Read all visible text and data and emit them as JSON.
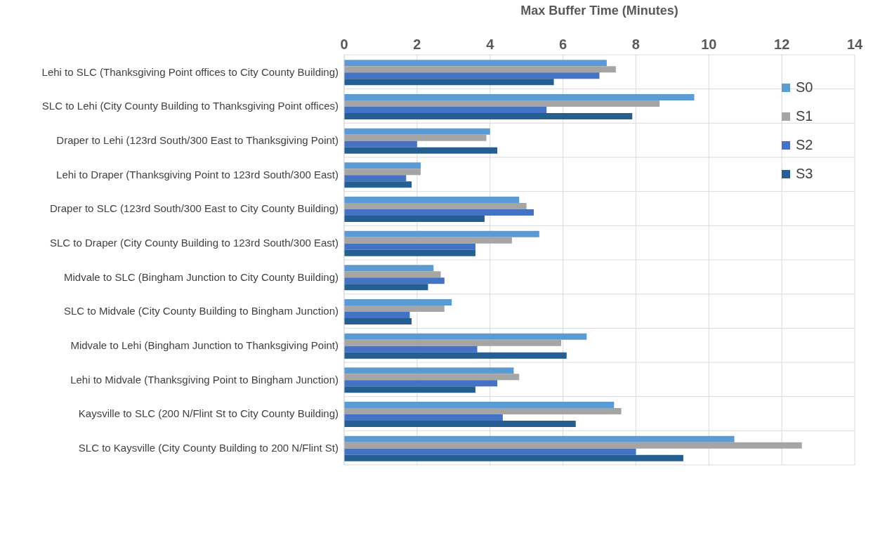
{
  "chart_data": {
    "type": "bar",
    "orientation": "horizontal",
    "xlabel": "Max Buffer Time (Minutes)",
    "categories": [
      "Lehi to SLC  (Thanksgiving Point offices to City County Building)",
      "SLC to Lehi  (City County Building to Thanksgiving Point offices)",
      "Draper to Lehi  (123rd South/300 East to Thanksgiving Point)",
      "Lehi to Draper  (Thanksgiving Point to 123rd South/300 East)",
      "Draper to SLC  (123rd South/300 East to City County Building)",
      "SLC to Draper  (City County Building to 123rd South/300 East)",
      "Midvale to SLC  (Bingham Junction to City County Building)",
      "SLC to Midvale  (City County Building to Bingham Junction)",
      "Midvale to Lehi  (Bingham Junction to Thanksgiving Point)",
      "Lehi to Midvale  (Thanksgiving Point to Bingham Junction)",
      "Kaysville to SLC  (200 N/Flint St to City County Building)",
      "SLC to Kaysville  (City County Building to 200 N/Flint St)"
    ],
    "series": [
      {
        "name": "S0",
        "color": "#5b9bd5",
        "values": [
          7.2,
          9.6,
          4.0,
          2.1,
          4.8,
          5.35,
          2.45,
          2.95,
          6.65,
          4.65,
          7.4,
          10.7
        ]
      },
      {
        "name": "S1",
        "color": "#a5a5a5",
        "values": [
          7.45,
          8.65,
          3.9,
          2.1,
          5.0,
          4.6,
          2.65,
          2.75,
          5.95,
          4.8,
          7.6,
          12.55
        ]
      },
      {
        "name": "S2",
        "color": "#4472c4",
        "values": [
          7.0,
          5.55,
          2.0,
          1.7,
          5.2,
          3.6,
          2.75,
          1.8,
          3.65,
          4.2,
          4.35,
          8.0
        ]
      },
      {
        "name": "S3",
        "color": "#255e91",
        "values": [
          5.75,
          7.9,
          4.2,
          1.85,
          3.85,
          3.6,
          2.3,
          1.85,
          6.1,
          3.6,
          6.35,
          9.3
        ]
      }
    ],
    "xlim": [
      0,
      14
    ],
    "xticks": [
      0,
      2,
      4,
      6,
      8,
      10,
      12,
      14
    ],
    "grid": true,
    "legend": "top right"
  }
}
